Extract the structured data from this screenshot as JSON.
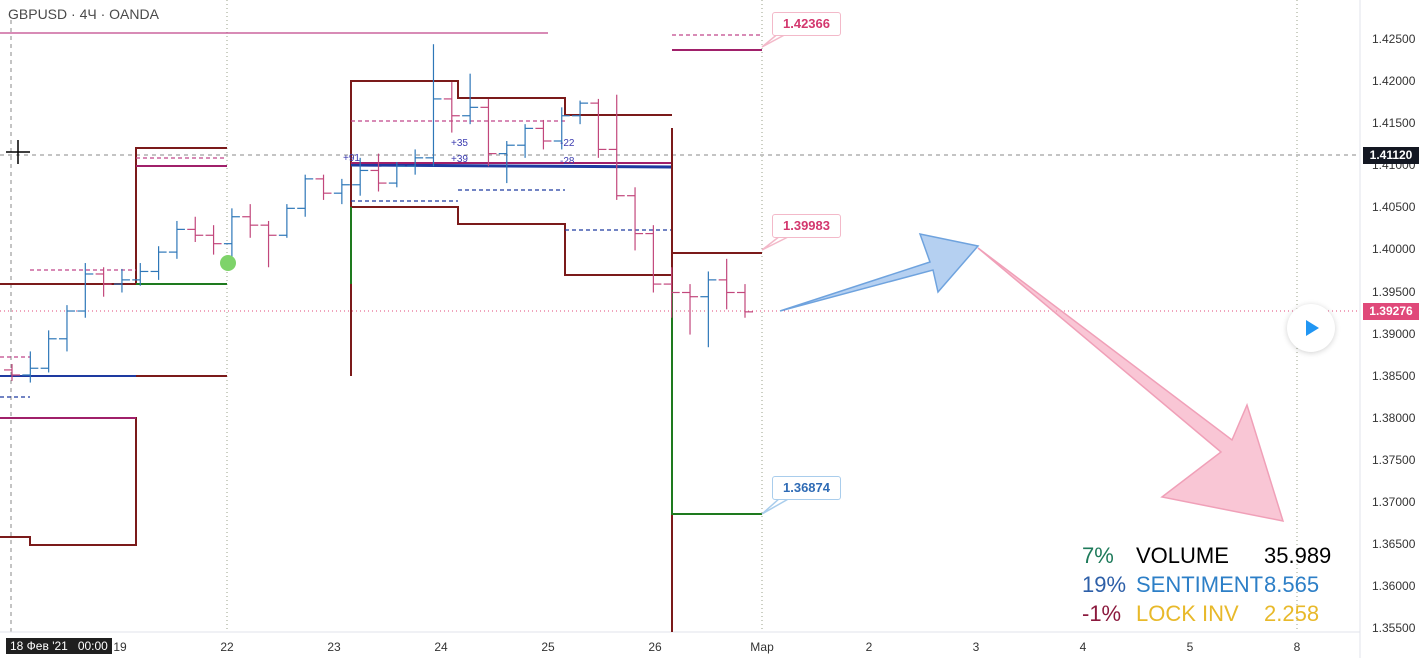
{
  "header": {
    "title": "GBPUSD · 4Ч · OANDA"
  },
  "axis": {
    "y_ticks": [
      "1.42500",
      "1.42000",
      "1.41500",
      "1.41000",
      "1.40500",
      "1.40000",
      "1.39500",
      "1.39000",
      "1.38500",
      "1.38000",
      "1.37500",
      "1.37000",
      "1.36500",
      "1.36000",
      "1.35500"
    ],
    "x_ticks": [
      "18 Фев '21   00:00",
      "19",
      "22",
      "23",
      "24",
      "25",
      "26",
      "Мар",
      "2",
      "3",
      "4",
      "5",
      "8"
    ]
  },
  "price_tags": {
    "crosshair": {
      "value": "1.41120",
      "color": "#131722"
    },
    "last": {
      "value": "1.39276",
      "color": "#e0497a"
    }
  },
  "callouts": {
    "top": "1.42366",
    "mid": "1.39983",
    "low": "1.36874"
  },
  "ma_labels": [
    "+91",
    "+35",
    "+39",
    "-22",
    "-28"
  ],
  "stats": [
    {
      "pct": "7%",
      "label": "VOLUME",
      "value": "35.989",
      "pct_color": "#1e7a5a",
      "label_color": "#000000",
      "value_color": "#000000"
    },
    {
      "pct": "19%",
      "label": "SENTIMENT",
      "value": "8.565",
      "pct_color": "#2d5fa8",
      "label_color": "#2d7fc7",
      "value_color": "#2d7fc7"
    },
    {
      "pct": "-1%",
      "label": "LOCK INV",
      "value": "2.258",
      "pct_color": "#8b1a3e",
      "label_color": "#e8b92a",
      "value_color": "#e8b92a"
    }
  ],
  "chart_data": {
    "type": "bar",
    "symbol": "GBPUSD",
    "timeframe": "4Ч",
    "ylim": [
      1.3535,
      1.4265
    ],
    "candles_ohlc": [
      [
        1.3858,
        1.3865,
        1.3845,
        1.3852
      ],
      [
        1.3852,
        1.388,
        1.3843,
        1.386
      ],
      [
        1.386,
        1.3905,
        1.3855,
        1.3895
      ],
      [
        1.3895,
        1.3935,
        1.388,
        1.3928
      ],
      [
        1.3928,
        1.3985,
        1.392,
        1.3972
      ],
      [
        1.3972,
        1.398,
        1.3945,
        1.396
      ],
      [
        1.396,
        1.3978,
        1.395,
        1.3965
      ],
      [
        1.3965,
        1.3985,
        1.3958,
        1.3975
      ],
      [
        1.3975,
        1.4005,
        1.3965,
        1.3998
      ],
      [
        1.3998,
        1.4035,
        1.399,
        1.4025
      ],
      [
        1.4025,
        1.404,
        1.401,
        1.4018
      ],
      [
        1.4018,
        1.403,
        1.3995,
        1.4008
      ],
      [
        1.4008,
        1.405,
        1.399,
        1.404
      ],
      [
        1.404,
        1.4055,
        1.4015,
        1.403
      ],
      [
        1.403,
        1.4035,
        1.398,
        1.4018
      ],
      [
        1.4018,
        1.4055,
        1.4015,
        1.405
      ],
      [
        1.405,
        1.409,
        1.404,
        1.4085
      ],
      [
        1.4085,
        1.409,
        1.406,
        1.4068
      ],
      [
        1.4068,
        1.4085,
        1.4055,
        1.4078
      ],
      [
        1.4078,
        1.411,
        1.4065,
        1.4095
      ],
      [
        1.4095,
        1.4115,
        1.407,
        1.408
      ],
      [
        1.408,
        1.4105,
        1.4075,
        1.41
      ],
      [
        1.41,
        1.412,
        1.409,
        1.411
      ],
      [
        1.411,
        1.4245,
        1.41,
        1.418
      ],
      [
        1.418,
        1.42,
        1.414,
        1.416
      ],
      [
        1.416,
        1.421,
        1.415,
        1.417
      ],
      [
        1.417,
        1.418,
        1.41,
        1.4115
      ],
      [
        1.4115,
        1.413,
        1.408,
        1.4125
      ],
      [
        1.4125,
        1.415,
        1.411,
        1.4145
      ],
      [
        1.4145,
        1.4155,
        1.412,
        1.413
      ],
      [
        1.413,
        1.417,
        1.412,
        1.416
      ],
      [
        1.416,
        1.4178,
        1.415,
        1.4175
      ],
      [
        1.4175,
        1.418,
        1.411,
        1.412
      ],
      [
        1.412,
        1.4185,
        1.406,
        1.4065
      ],
      [
        1.4065,
        1.4075,
        1.4,
        1.402
      ],
      [
        1.402,
        1.403,
        1.395,
        1.396
      ],
      [
        1.396,
        1.398,
        1.392,
        1.395
      ],
      [
        1.395,
        1.396,
        1.39,
        1.3945
      ],
      [
        1.3945,
        1.3975,
        1.3885,
        1.3965
      ],
      [
        1.3965,
        1.399,
        1.393,
        1.395
      ],
      [
        1.395,
        1.396,
        1.392,
        1.3927
      ]
    ]
  }
}
